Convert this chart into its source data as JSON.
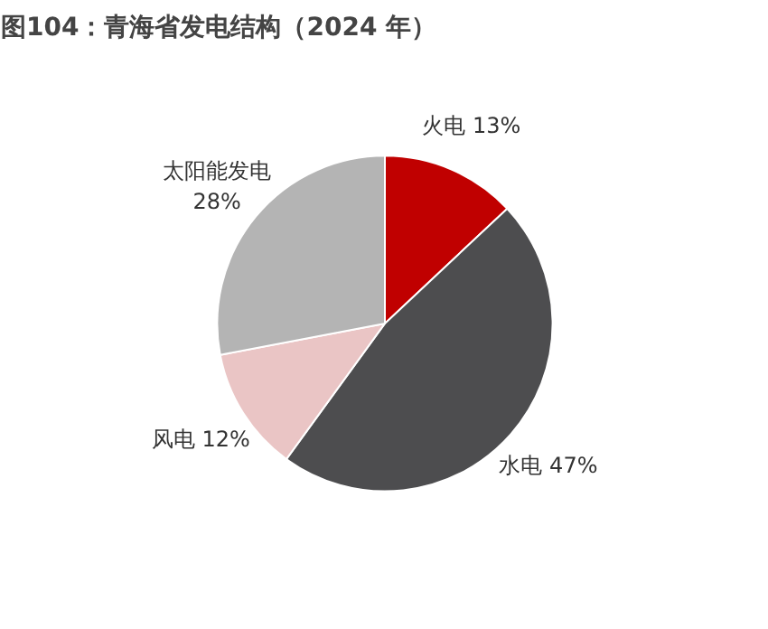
{
  "chart_data": {
    "type": "pie",
    "title": "图104：青海省发电结构（2024 年）",
    "categories": [
      "火电",
      "水电",
      "风电",
      "太阳能发电"
    ],
    "values": [
      13,
      47,
      12,
      28
    ],
    "value_labels": [
      "13%",
      "47%",
      "12%",
      "28%"
    ],
    "colors": [
      "#c00000",
      "#4d4d4f",
      "#eac5c5",
      "#b4b4b4"
    ]
  }
}
